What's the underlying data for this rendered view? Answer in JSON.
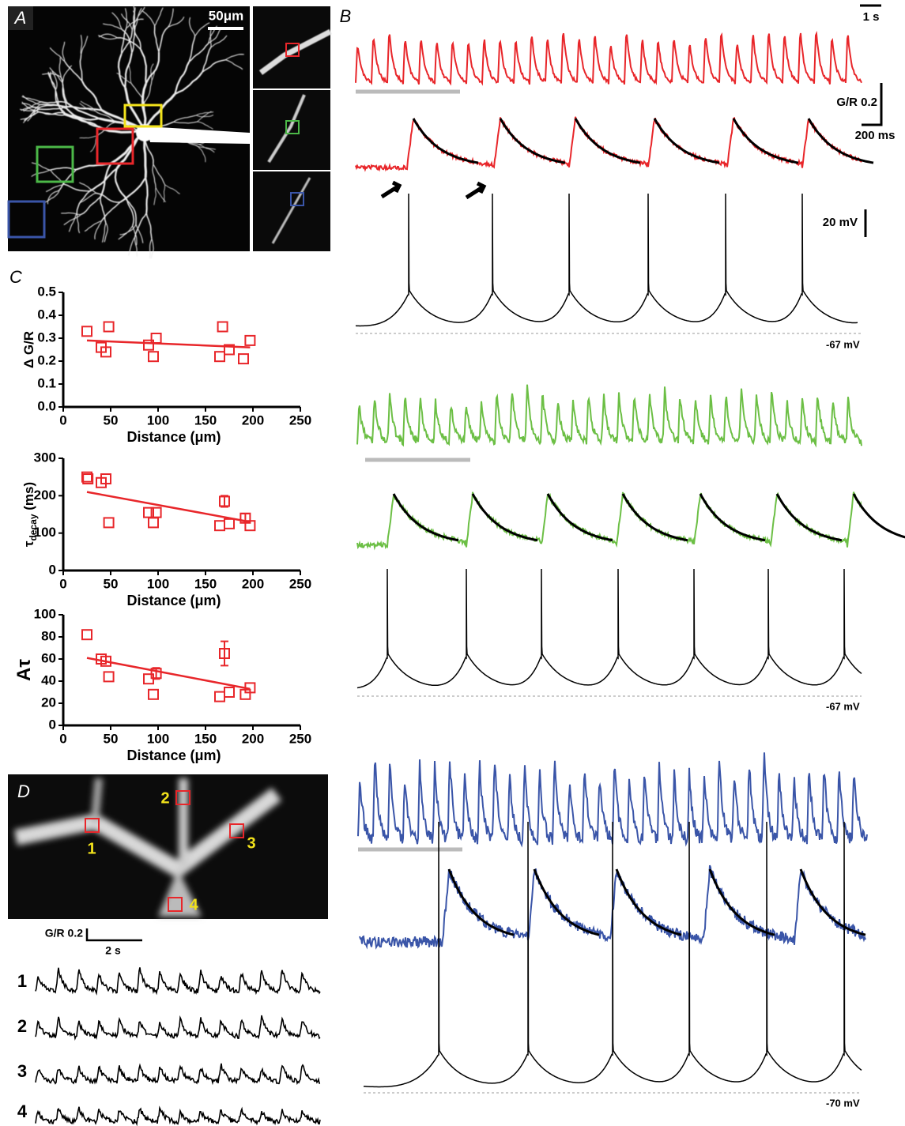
{
  "labels": {
    "panel_a": "A",
    "panel_b": "B",
    "panel_c": "C",
    "panel_d": "D",
    "scale_a": "50μm",
    "scale_time_b": "1 s",
    "scale_gr_b": "G/R 0.2",
    "scale_ms_b": "200 ms",
    "scale_mv_b": "20 mV",
    "rest_red": "-67 mV",
    "rest_green": "-67 mV",
    "rest_blue": "-70 mV",
    "scale_gr_d": "G/R 0.2",
    "scale_time_d": "2 s",
    "roi": [
      "1",
      "2",
      "3",
      "4"
    ],
    "trace": [
      "1",
      "2",
      "3",
      "4"
    ]
  },
  "chart_data": [
    {
      "type": "scatter",
      "color": "#e8262a",
      "x_label": "Distance (μm)",
      "y_label": "Δ G/R",
      "x": [
        25,
        40,
        45,
        48,
        90,
        95,
        98,
        165,
        168,
        175,
        190,
        197
      ],
      "values": [
        0.33,
        0.26,
        0.24,
        0.35,
        0.27,
        0.22,
        0.3,
        0.22,
        0.35,
        0.25,
        0.21,
        0.29
      ],
      "fit": {
        "x": [
          25,
          197
        ],
        "values": [
          0.29,
          0.26
        ]
      },
      "xlim": [
        0,
        250
      ],
      "ylim": [
        0,
        0.5
      ],
      "xticks": [
        0,
        50,
        100,
        150,
        200,
        250
      ],
      "yticks": [
        {
          "value": 0,
          "label": "0.0"
        },
        0.1,
        0.2,
        0.3,
        0.4,
        0.5
      ]
    },
    {
      "type": "scatter",
      "color": "#e8262a",
      "x_label": "Distance (μm)",
      "y_label": "τ",
      "y_label_sub": "decay",
      "y_label_unit": " (ms)",
      "x": [
        25,
        26,
        40,
        45,
        48,
        90,
        95,
        98,
        165,
        170,
        175,
        192,
        197
      ],
      "values": [
        250,
        245,
        235,
        245,
        128,
        155,
        128,
        155,
        120,
        185,
        125,
        140,
        120
      ],
      "errors": [
        null,
        null,
        null,
        null,
        null,
        null,
        null,
        null,
        null,
        15,
        null,
        12,
        null
      ],
      "fit": {
        "x": [
          25,
          197
        ],
        "values": [
          210,
          130
        ]
      },
      "xlim": [
        0,
        250
      ],
      "ylim": [
        0,
        300
      ],
      "xticks": [
        0,
        50,
        100,
        150,
        200,
        250
      ],
      "yticks": [
        0,
        100,
        200,
        300
      ]
    },
    {
      "type": "scatter",
      "color": "#e8262a",
      "x_label": "Distance (μm)",
      "y_label": "Aτ",
      "x": [
        25,
        40,
        45,
        48,
        90,
        95,
        98,
        165,
        170,
        175,
        192,
        197
      ],
      "values": [
        82,
        60,
        58,
        44,
        42,
        28,
        47,
        26,
        65,
        30,
        28,
        34
      ],
      "errors": [
        null,
        null,
        null,
        null,
        null,
        null,
        5,
        null,
        11,
        null,
        null,
        null
      ],
      "fit": {
        "x": [
          25,
          197
        ],
        "values": [
          61,
          33
        ]
      },
      "xlim": [
        0,
        250
      ],
      "ylim": [
        0,
        100
      ],
      "xticks": [
        0,
        50,
        100,
        150,
        200,
        250
      ],
      "yticks": [
        0,
        20,
        40,
        60,
        80,
        100
      ]
    }
  ]
}
